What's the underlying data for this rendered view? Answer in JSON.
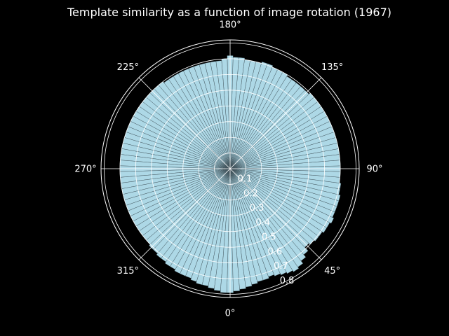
{
  "colors": {
    "background": "#000000",
    "bar_fill": "#add8e6",
    "bar_edge": "#3a4a52",
    "grid": "#ffffff",
    "text": "#ffffff"
  },
  "chart_data": {
    "type": "bar",
    "projection": "polar",
    "title": "Template similarity as a function of image rotation (1967)",
    "theta_zero_location": "bottom",
    "theta_direction": "counterclockwise",
    "theta_tick_labels": [
      "0°",
      "45°",
      "90°",
      "135°",
      "180°",
      "225°",
      "270°",
      "315°"
    ],
    "r_tick_labels": [
      "0.1",
      "0.2",
      "0.3",
      "0.4",
      "0.5",
      "0.6",
      "0.7",
      "0.8"
    ],
    "rlim": [
      0,
      0.82
    ],
    "grid": true,
    "bin_width_degrees": 3,
    "x_unit": "degrees",
    "x": [
      0,
      3,
      6,
      9,
      12,
      15,
      18,
      21,
      24,
      27,
      30,
      33,
      36,
      39,
      42,
      45,
      48,
      51,
      54,
      57,
      60,
      63,
      66,
      69,
      72,
      75,
      78,
      81,
      84,
      87,
      90,
      93,
      96,
      99,
      102,
      105,
      108,
      111,
      114,
      117,
      120,
      123,
      126,
      129,
      132,
      135,
      138,
      141,
      144,
      147,
      150,
      153,
      156,
      159,
      162,
      165,
      168,
      171,
      174,
      177,
      180,
      183,
      186,
      189,
      192,
      195,
      198,
      201,
      204,
      207,
      210,
      213,
      216,
      219,
      222,
      225,
      228,
      231,
      234,
      237,
      240,
      243,
      246,
      249,
      252,
      255,
      258,
      261,
      264,
      267,
      270,
      273,
      276,
      279,
      282,
      285,
      288,
      291,
      294,
      297,
      300,
      303,
      306,
      309,
      312,
      315,
      318,
      321,
      324,
      327,
      330,
      333,
      336,
      339,
      342,
      345,
      348,
      351,
      354,
      357
    ],
    "values": [
      0.79,
      0.78,
      0.77,
      0.76,
      0.75,
      0.74,
      0.74,
      0.73,
      0.74,
      0.75,
      0.76,
      0.77,
      0.76,
      0.74,
      0.72,
      0.69,
      0.7,
      0.71,
      0.71,
      0.72,
      0.72,
      0.73,
      0.72,
      0.72,
      0.72,
      0.72,
      0.71,
      0.71,
      0.7,
      0.7,
      0.7,
      0.7,
      0.7,
      0.7,
      0.7,
      0.7,
      0.7,
      0.7,
      0.7,
      0.7,
      0.7,
      0.7,
      0.7,
      0.7,
      0.7,
      0.69,
      0.69,
      0.69,
      0.69,
      0.69,
      0.7,
      0.7,
      0.7,
      0.71,
      0.71,
      0.7,
      0.7,
      0.7,
      0.71,
      0.71,
      0.72,
      0.7,
      0.69,
      0.69,
      0.69,
      0.69,
      0.69,
      0.69,
      0.69,
      0.69,
      0.69,
      0.69,
      0.69,
      0.7,
      0.7,
      0.7,
      0.7,
      0.7,
      0.7,
      0.7,
      0.7,
      0.7,
      0.7,
      0.7,
      0.7,
      0.7,
      0.7,
      0.7,
      0.7,
      0.7,
      0.7,
      0.7,
      0.7,
      0.7,
      0.7,
      0.7,
      0.7,
      0.7,
      0.7,
      0.7,
      0.7,
      0.7,
      0.7,
      0.7,
      0.7,
      0.71,
      0.71,
      0.72,
      0.72,
      0.73,
      0.73,
      0.74,
      0.74,
      0.74,
      0.75,
      0.76,
      0.76,
      0.77,
      0.78,
      0.79
    ]
  }
}
